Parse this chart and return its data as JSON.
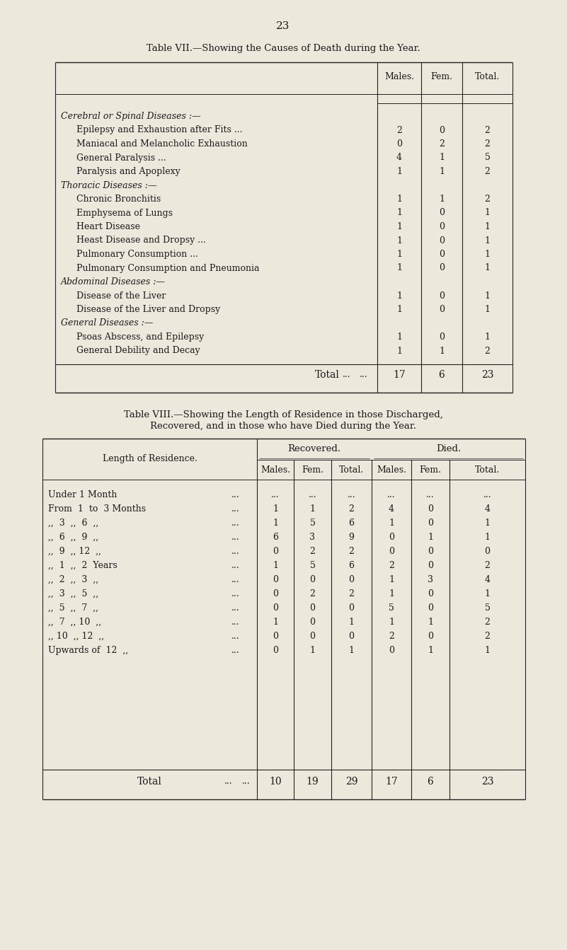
{
  "page_number": "23",
  "bg_color": "#ede8dc",
  "text_color": "#1a1a1a",
  "table7": {
    "title": "Table VII.—Showing the Causes of Death during the Year.",
    "col_headers": [
      "Males.",
      "Fem.",
      "Total."
    ],
    "rows": [
      {
        "label": "Cerebral or Spinal Diseases :—",
        "italic": true,
        "category": true,
        "males": null,
        "fem": null,
        "total": null
      },
      {
        "label": "Epilepsy and Exhaustion after Fits ...",
        "indent": true,
        "dots": "...",
        "males": 2,
        "fem": 0,
        "total": 2
      },
      {
        "label": "Maniacal and Melancholic Exhaustion",
        "indent": true,
        "dots": "...",
        "males": 0,
        "fem": 2,
        "total": 2
      },
      {
        "label": "General Paralysis ...",
        "indent": true,
        "dots": "...",
        "males": 4,
        "fem": 1,
        "total": 5
      },
      {
        "label": "Paralysis and Apoplexy",
        "indent": true,
        "dots": "...",
        "males": 1,
        "fem": 1,
        "total": 2
      },
      {
        "label": "Thoracic Diseases :—",
        "italic": true,
        "category": true,
        "males": null,
        "fem": null,
        "total": null
      },
      {
        "label": "Chronic Bronchitis",
        "indent": true,
        "dots": "...",
        "males": 1,
        "fem": 1,
        "total": 2
      },
      {
        "label": "Emphysema of Lungs",
        "indent": true,
        "dots": "...",
        "males": 1,
        "fem": 0,
        "total": 1
      },
      {
        "label": "Heart Disease",
        "indent": true,
        "dots": "...",
        "males": 1,
        "fem": 0,
        "total": 1
      },
      {
        "label": "Heast Disease and Dropsy ...",
        "indent": true,
        "dots": "...",
        "males": 1,
        "fem": 0,
        "total": 1
      },
      {
        "label": "Pulmonary Consumption ...",
        "indent": true,
        "dots": "...",
        "males": 1,
        "fem": 0,
        "total": 1
      },
      {
        "label": "Pulmonary Consumption and Pneumonia",
        "indent": true,
        "dots": "...",
        "males": 1,
        "fem": 0,
        "total": 1
      },
      {
        "label": "Abdominal Diseases :—",
        "italic": true,
        "category": true,
        "males": null,
        "fem": null,
        "total": null
      },
      {
        "label": "Disease of the Liver",
        "indent": true,
        "dots": "...",
        "males": 1,
        "fem": 0,
        "total": 1
      },
      {
        "label": "Disease of the Liver and Dropsy",
        "indent": true,
        "dots": "...",
        "males": 1,
        "fem": 0,
        "total": 1
      },
      {
        "label": "General Diseases :—",
        "italic": true,
        "category": true,
        "males": null,
        "fem": null,
        "total": null
      },
      {
        "label": "Psoas Abscess, and Epilepsy",
        "indent": true,
        "dots": "...",
        "males": 1,
        "fem": 0,
        "total": 1
      },
      {
        "label": "General Debility and Decay",
        "indent": true,
        "dots": "...",
        "males": 1,
        "fem": 1,
        "total": 2
      }
    ],
    "total_row": {
      "label": "Total",
      "males": 17,
      "fem": 6,
      "total": 23
    }
  },
  "table8": {
    "title1": "Table VIII.—Showing the Length of Residence in those Discharged,",
    "title2": "Recovered, and in those who have Died during the Year.",
    "rows": [
      {
        "label": "Under 1 Month",
        "r_males": "...",
        "r_fem": "...",
        "r_total": "...",
        "d_males": "...",
        "d_fem": "...",
        "d_total": "..."
      },
      {
        "label": "From  1  to  3 Months",
        "r_males": "1",
        "r_fem": "1",
        "r_total": "2",
        "d_males": "4",
        "d_fem": "0",
        "d_total": "4"
      },
      {
        "label": ",,  3  ,,  6  ,,",
        "r_males": "1",
        "r_fem": "5",
        "r_total": "6",
        "d_males": "1",
        "d_fem": "0",
        "d_total": "1"
      },
      {
        "label": ",,  6  ,,  9  ,,",
        "r_males": "6",
        "r_fem": "3",
        "r_total": "9",
        "d_males": "0",
        "d_fem": "1",
        "d_total": "1"
      },
      {
        "label": ",,  9  ,, 12  ,,",
        "r_males": "0",
        "r_fem": "2",
        "r_total": "2",
        "d_males": "0",
        "d_fem": "0",
        "d_total": "0"
      },
      {
        "label": ",,  1  ,,  2  Years",
        "r_males": "1",
        "r_fem": "5",
        "r_total": "6",
        "d_males": "2",
        "d_fem": "0",
        "d_total": "2"
      },
      {
        "label": ",,  2  ,,  3  ,,",
        "r_males": "0",
        "r_fem": "0",
        "r_total": "0",
        "d_males": "1",
        "d_fem": "3",
        "d_total": "4"
      },
      {
        "label": ",,  3  ,,  5  ,,",
        "r_males": "0",
        "r_fem": "2",
        "r_total": "2",
        "d_males": "1",
        "d_fem": "0",
        "d_total": "1"
      },
      {
        "label": ",,  5  ,,  7  ,,",
        "r_males": "0",
        "r_fem": "0",
        "r_total": "0",
        "d_males": "5",
        "d_fem": "0",
        "d_total": "5"
      },
      {
        "label": ",,  7  ,, 10  ,,",
        "r_males": "1",
        "r_fem": "0",
        "r_total": "1",
        "d_males": "1",
        "d_fem": "1",
        "d_total": "2"
      },
      {
        "label": ",, 10  ,, 12  ,,",
        "r_males": "0",
        "r_fem": "0",
        "r_total": "0",
        "d_males": "2",
        "d_fem": "0",
        "d_total": "2"
      },
      {
        "label": "Upwards of  12  ,,",
        "r_males": "0",
        "r_fem": "1",
        "r_total": "1",
        "d_males": "0",
        "d_fem": "1",
        "d_total": "1"
      }
    ],
    "total_row": {
      "label": "Total",
      "r_males": "10",
      "r_fem": "19",
      "r_total": "29",
      "d_males": "17",
      "d_fem": "6",
      "d_total": "23"
    }
  }
}
